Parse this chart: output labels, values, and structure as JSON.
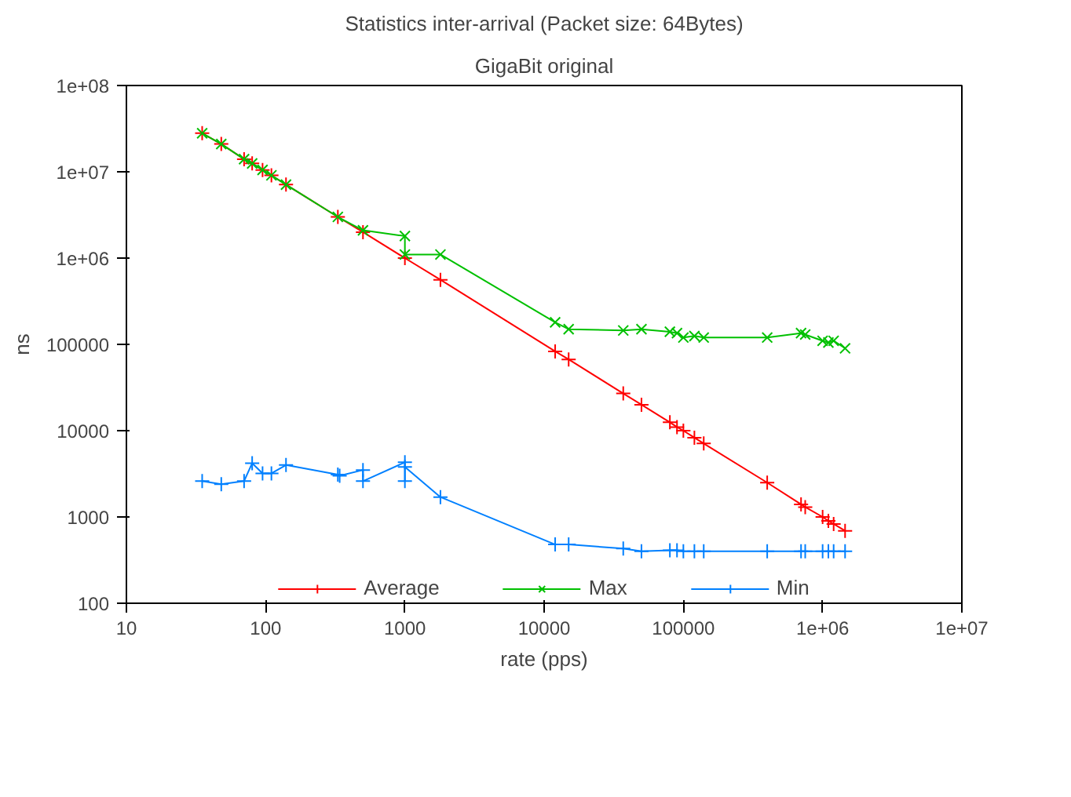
{
  "chart_data": {
    "type": "line",
    "title": "Statistics inter-arrival (Packet size: 64Bytes)",
    "subtitle": "GigaBit original",
    "xlabel": "rate (pps)",
    "ylabel": "ns",
    "log": "xy",
    "grid": false,
    "legend": "bottom",
    "xlim": [
      10,
      10000000
    ],
    "ylim": [
      100,
      100000000
    ],
    "xticks": [
      10,
      100,
      1000,
      10000,
      100000,
      {
        "value": 1000000,
        "label": "1e+06"
      },
      {
        "value": 10000000,
        "label": "1e+07"
      }
    ],
    "yticks": [
      100,
      1000,
      10000,
      100000,
      {
        "value": 1000000,
        "label": "1e+06"
      },
      {
        "value": 10000000,
        "label": "1e+07"
      },
      {
        "value": 100000000,
        "label": "1e+08"
      }
    ],
    "series": [
      {
        "name": "Average",
        "color": "#ff0000",
        "marker": "cross",
        "x": [
          35,
          48,
          70,
          80,
          95,
          110,
          140,
          330,
          500,
          1000,
          1800,
          12000,
          15000,
          37000,
          50000,
          80000,
          90000,
          100000,
          120000,
          140000,
          400000,
          700000,
          750000,
          1000000,
          1100000,
          1200000,
          1450000
        ],
        "values": [
          28000000,
          21000000,
          14000000,
          12500000,
          10500000,
          9100000,
          7100000,
          3000000,
          2000000,
          1000000,
          560000,
          83000,
          67000,
          27000,
          20000,
          12500,
          11000,
          10000,
          8300,
          7100,
          2500,
          1400,
          1300,
          1000,
          900,
          830,
          690
        ]
      },
      {
        "name": "Max",
        "color": "#00c000",
        "marker": "x",
        "x": [
          35,
          48,
          70,
          80,
          95,
          110,
          140,
          330,
          500,
          1000,
          1000,
          1800,
          12000,
          15000,
          37000,
          50000,
          80000,
          90000,
          100000,
          120000,
          140000,
          400000,
          700000,
          750000,
          1000000,
          1100000,
          1200000,
          1450000
        ],
        "values": [
          28000000,
          21000000,
          14000000,
          12500000,
          10500000,
          9100000,
          7100000,
          3000000,
          2100000,
          1800000,
          1100000,
          1100000,
          180000,
          150000,
          145000,
          150000,
          140000,
          135000,
          120000,
          125000,
          120000,
          120000,
          135000,
          130000,
          110000,
          105000,
          110000,
          90000
        ]
      },
      {
        "name": "Min",
        "color": "#0080ff",
        "marker": "cross",
        "x": [
          35,
          48,
          70,
          80,
          95,
          110,
          140,
          330,
          340,
          500,
          500,
          1000,
          1000,
          1000,
          1800,
          12000,
          15000,
          37000,
          50000,
          80000,
          90000,
          100000,
          120000,
          140000,
          400000,
          700000,
          750000,
          1000000,
          1100000,
          1200000,
          1450000
        ],
        "values": [
          2600,
          2400,
          2600,
          4200,
          3200,
          3200,
          4000,
          3100,
          3000,
          3500,
          2600,
          4300,
          2600,
          3800,
          1700,
          480,
          480,
          430,
          400,
          410,
          410,
          400,
          400,
          400,
          400,
          400,
          400,
          400,
          400,
          400,
          400
        ]
      }
    ]
  }
}
